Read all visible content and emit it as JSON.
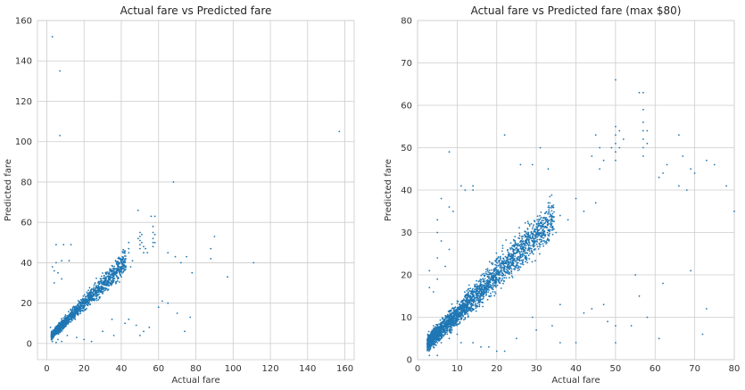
{
  "chart_data": [
    {
      "type": "scatter",
      "title": "Actual fare vs Predicted fare",
      "xlabel": "Actual fare",
      "ylabel": "Predicted fare",
      "xlim": [
        -5,
        165
      ],
      "ylim": [
        -8,
        160
      ],
      "xticks": [
        0,
        20,
        40,
        60,
        80,
        100,
        120,
        140,
        160
      ],
      "yticks": [
        0,
        20,
        40,
        60,
        80,
        100,
        120,
        140,
        160
      ],
      "grid": true,
      "color": "#1f77b4",
      "points": [
        [
          3,
          152
        ],
        [
          7,
          135
        ],
        [
          7,
          103
        ],
        [
          157,
          105
        ],
        [
          68,
          80
        ],
        [
          49,
          66
        ],
        [
          56,
          63
        ],
        [
          58,
          63
        ],
        [
          57,
          58
        ],
        [
          57,
          55
        ],
        [
          57,
          52
        ],
        [
          57,
          50
        ],
        [
          57,
          48
        ],
        [
          58,
          54
        ],
        [
          58,
          50
        ],
        [
          50,
          55
        ],
        [
          50,
          53
        ],
        [
          50,
          51
        ],
        [
          50,
          49
        ],
        [
          50,
          47
        ],
        [
          51,
          54
        ],
        [
          51,
          50
        ],
        [
          49,
          52
        ],
        [
          44,
          50
        ],
        [
          44,
          47
        ],
        [
          44,
          45
        ],
        [
          52,
          48
        ],
        [
          52,
          45
        ],
        [
          53,
          47
        ],
        [
          54,
          45
        ],
        [
          5,
          49
        ],
        [
          9,
          49
        ],
        [
          13,
          49
        ],
        [
          3,
          38
        ],
        [
          5,
          40
        ],
        [
          4,
          36
        ],
        [
          8,
          41
        ],
        [
          12,
          41
        ],
        [
          6,
          35
        ],
        [
          4,
          30
        ],
        [
          8,
          32
        ],
        [
          65,
          45
        ],
        [
          69,
          43
        ],
        [
          75,
          43
        ],
        [
          72,
          40
        ],
        [
          90,
          53
        ],
        [
          88,
          47
        ],
        [
          88,
          42
        ],
        [
          97,
          33
        ],
        [
          111,
          40
        ],
        [
          78,
          35
        ],
        [
          77,
          13
        ],
        [
          74,
          6
        ],
        [
          60,
          18
        ],
        [
          62,
          21
        ],
        [
          65,
          20
        ],
        [
          70,
          15
        ],
        [
          55,
          8
        ],
        [
          48,
          9
        ],
        [
          52,
          6
        ],
        [
          44,
          12
        ],
        [
          42,
          10
        ],
        [
          50,
          4
        ],
        [
          36,
          4
        ],
        [
          35,
          12
        ],
        [
          30,
          6
        ],
        [
          24,
          1
        ],
        [
          20,
          2
        ],
        [
          16,
          3
        ],
        [
          11,
          4
        ],
        [
          8,
          1
        ],
        [
          6,
          2
        ],
        [
          5,
          0.5
        ],
        [
          3,
          1
        ],
        [
          3,
          4
        ],
        [
          4,
          6
        ],
        [
          2,
          8
        ],
        [
          45,
          38
        ],
        [
          40,
          33
        ],
        [
          38,
          36
        ],
        [
          35,
          30
        ],
        [
          33,
          31
        ],
        [
          30,
          28
        ],
        [
          28,
          26
        ],
        [
          26,
          30
        ],
        [
          25,
          22
        ],
        [
          22,
          20
        ],
        [
          20,
          18
        ],
        [
          18,
          16
        ],
        [
          16,
          15
        ],
        [
          14,
          13
        ],
        [
          12,
          12
        ],
        [
          10,
          10
        ],
        [
          8,
          9
        ],
        [
          6,
          7
        ],
        [
          4,
          5
        ],
        [
          9,
          11
        ],
        [
          11,
          13
        ],
        [
          13,
          14
        ],
        [
          15,
          17
        ],
        [
          17,
          19
        ],
        [
          19,
          21
        ],
        [
          21,
          23
        ],
        [
          23,
          25
        ],
        [
          27,
          28
        ],
        [
          29,
          30
        ],
        [
          31,
          29
        ],
        [
          34,
          33
        ],
        [
          36,
          35
        ],
        [
          38,
          32
        ],
        [
          40,
          37
        ],
        [
          42,
          40
        ],
        [
          46,
          41
        ],
        [
          41,
          45
        ],
        [
          39,
          40
        ]
      ]
    },
    {
      "type": "scatter",
      "title": "Actual fare vs Predicted fare (max $80)",
      "xlabel": "Actual fare",
      "ylabel": "Predicted fare",
      "xlim": [
        0,
        80
      ],
      "ylim": [
        0,
        80
      ],
      "xticks": [
        0,
        10,
        20,
        30,
        40,
        50,
        60,
        70,
        80
      ],
      "yticks": [
        0,
        10,
        20,
        30,
        40,
        50,
        60,
        70,
        80
      ],
      "grid": true,
      "color": "#1f77b4",
      "points": [
        [
          50,
          66
        ],
        [
          56,
          63
        ],
        [
          57,
          63
        ],
        [
          57,
          59
        ],
        [
          57,
          56
        ],
        [
          57,
          54
        ],
        [
          57,
          52
        ],
        [
          57,
          50
        ],
        [
          57,
          48
        ],
        [
          58,
          54
        ],
        [
          58,
          51
        ],
        [
          50,
          55
        ],
        [
          50,
          53
        ],
        [
          50,
          51
        ],
        [
          50,
          49
        ],
        [
          50,
          47
        ],
        [
          51,
          54
        ],
        [
          51,
          50
        ],
        [
          52,
          52
        ],
        [
          49,
          50
        ],
        [
          45,
          53
        ],
        [
          46,
          50
        ],
        [
          47,
          47
        ],
        [
          46,
          45
        ],
        [
          44,
          48
        ],
        [
          22,
          53
        ],
        [
          31,
          50
        ],
        [
          29,
          46
        ],
        [
          33,
          45
        ],
        [
          26,
          46
        ],
        [
          14,
          41
        ],
        [
          8,
          49
        ],
        [
          11,
          41
        ],
        [
          12,
          40
        ],
        [
          14,
          40
        ],
        [
          6,
          38
        ],
        [
          8,
          36
        ],
        [
          5,
          33
        ],
        [
          9,
          35
        ],
        [
          66,
          53
        ],
        [
          67,
          48
        ],
        [
          63,
          46
        ],
        [
          69,
          45
        ],
        [
          62,
          44
        ],
        [
          61,
          43
        ],
        [
          70,
          44
        ],
        [
          73,
          47
        ],
        [
          75,
          46
        ],
        [
          68,
          40
        ],
        [
          66,
          41
        ],
        [
          78,
          41
        ],
        [
          80,
          35
        ],
        [
          69,
          21
        ],
        [
          62,
          18
        ],
        [
          55,
          20
        ],
        [
          56,
          15
        ],
        [
          58,
          10
        ],
        [
          61,
          5
        ],
        [
          72,
          6
        ],
        [
          73,
          12
        ],
        [
          54,
          8
        ],
        [
          50,
          8
        ],
        [
          48,
          9
        ],
        [
          50,
          4
        ],
        [
          42,
          11
        ],
        [
          44,
          12
        ],
        [
          47,
          13
        ],
        [
          40,
          4
        ],
        [
          36,
          4
        ],
        [
          34,
          8
        ],
        [
          30,
          7
        ],
        [
          36,
          13
        ],
        [
          29,
          10
        ],
        [
          25,
          5
        ],
        [
          22,
          2
        ],
        [
          20,
          2
        ],
        [
          18,
          3
        ],
        [
          16,
          3
        ],
        [
          14,
          4
        ],
        [
          11,
          4
        ],
        [
          10,
          6
        ],
        [
          8,
          5
        ],
        [
          6,
          4
        ],
        [
          5,
          1
        ],
        [
          3,
          1
        ],
        [
          4,
          8
        ],
        [
          7,
          10
        ],
        [
          4,
          16
        ],
        [
          5,
          19
        ],
        [
          3,
          17
        ],
        [
          5,
          24
        ],
        [
          7,
          22
        ],
        [
          3,
          21
        ],
        [
          8,
          26
        ],
        [
          6,
          28
        ],
        [
          5,
          30
        ],
        [
          45,
          37
        ],
        [
          42,
          35
        ],
        [
          40,
          38
        ],
        [
          38,
          33
        ],
        [
          36,
          34
        ],
        [
          35,
          30
        ],
        [
          33,
          32
        ],
        [
          32,
          28
        ],
        [
          30,
          28
        ],
        [
          28,
          29
        ],
        [
          27,
          26
        ],
        [
          25,
          24
        ],
        [
          24,
          23
        ],
        [
          22,
          22
        ],
        [
          21,
          20
        ],
        [
          20,
          19
        ],
        [
          19,
          18
        ],
        [
          18,
          17
        ],
        [
          17,
          16
        ],
        [
          16,
          15
        ],
        [
          15,
          14
        ],
        [
          14,
          13
        ],
        [
          13,
          12
        ],
        [
          12,
          11
        ],
        [
          11,
          10
        ],
        [
          10,
          9
        ],
        [
          9,
          8
        ],
        [
          8,
          7
        ],
        [
          7,
          6
        ],
        [
          6,
          5
        ],
        [
          5,
          4
        ],
        [
          4,
          3
        ],
        [
          3,
          3
        ]
      ]
    }
  ]
}
